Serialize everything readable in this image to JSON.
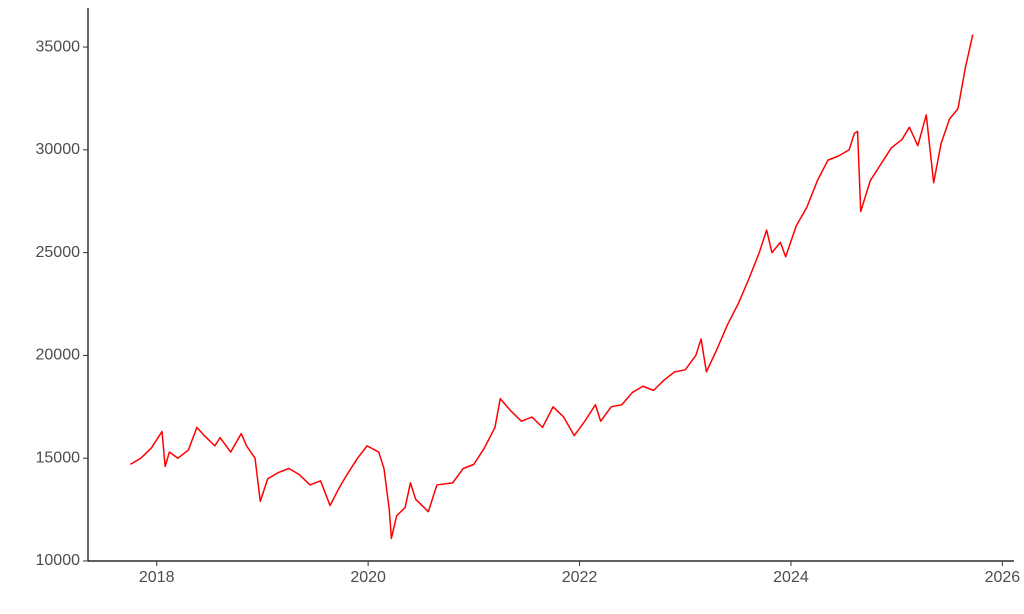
{
  "chart_data": {
    "type": "line",
    "x": [
      2017.75,
      2017.85,
      2017.95,
      2018.0,
      2018.05,
      2018.08,
      2018.12,
      2018.2,
      2018.3,
      2018.38,
      2018.45,
      2018.55,
      2018.6,
      2018.7,
      2018.8,
      2018.85,
      2018.93,
      2018.98,
      2019.05,
      2019.15,
      2019.25,
      2019.35,
      2019.45,
      2019.55,
      2019.64,
      2019.72,
      2019.8,
      2019.9,
      2019.99,
      2020.1,
      2020.15,
      2020.2,
      2020.22,
      2020.27,
      2020.35,
      2020.4,
      2020.45,
      2020.57,
      2020.65,
      2020.8,
      2020.9,
      2021.0,
      2021.1,
      2021.2,
      2021.25,
      2021.35,
      2021.45,
      2021.55,
      2021.65,
      2021.75,
      2021.85,
      2021.95,
      2022.05,
      2022.15,
      2022.2,
      2022.3,
      2022.4,
      2022.5,
      2022.6,
      2022.7,
      2022.8,
      2022.9,
      2023.0,
      2023.1,
      2023.15,
      2023.2,
      2023.3,
      2023.4,
      2023.5,
      2023.6,
      2023.7,
      2023.77,
      2023.82,
      2023.9,
      2023.95,
      2024.05,
      2024.15,
      2024.25,
      2024.35,
      2024.45,
      2024.55,
      2024.6,
      2024.63,
      2024.66,
      2024.75,
      2024.85,
      2024.95,
      2025.05,
      2025.12,
      2025.2,
      2025.28,
      2025.35,
      2025.42,
      2025.5,
      2025.58,
      2025.65,
      2025.72
    ],
    "series": [
      {
        "color": "#ff0000",
        "values": [
          14700,
          15000,
          15500,
          15900,
          16300,
          14600,
          15300,
          15000,
          15400,
          16500,
          16100,
          15600,
          16000,
          15300,
          16200,
          15600,
          15000,
          12900,
          14000,
          14300,
          14500,
          14200,
          13700,
          13900,
          12700,
          13500,
          14200,
          15000,
          15600,
          15300,
          14500,
          12500,
          11100,
          12200,
          12600,
          13800,
          13000,
          12400,
          13700,
          13800,
          14500,
          14700,
          15500,
          16500,
          17900,
          17300,
          16800,
          17000,
          16500,
          17500,
          17000,
          16100,
          16800,
          17600,
          16800,
          17500,
          17600,
          18200,
          18500,
          18300,
          18800,
          19200,
          19300,
          20000,
          20800,
          19200,
          20300,
          21500,
          22500,
          23700,
          25000,
          26100,
          25000,
          25500,
          24800,
          26300,
          27200,
          28500,
          29500,
          29700,
          30000,
          30800,
          30900,
          27000,
          28500,
          29300,
          30100,
          30500,
          31100,
          30200,
          31700,
          28400,
          30300,
          31500,
          32000,
          34000,
          35600
        ]
      }
    ],
    "xlim": [
      2017.35,
      2026.11
    ],
    "xticks": [
      2018,
      2020,
      2022,
      2024,
      2026
    ],
    "ylim": [
      10000,
      36900
    ],
    "yticks": [
      10000,
      15000,
      20000,
      25000,
      30000,
      35000
    ]
  }
}
